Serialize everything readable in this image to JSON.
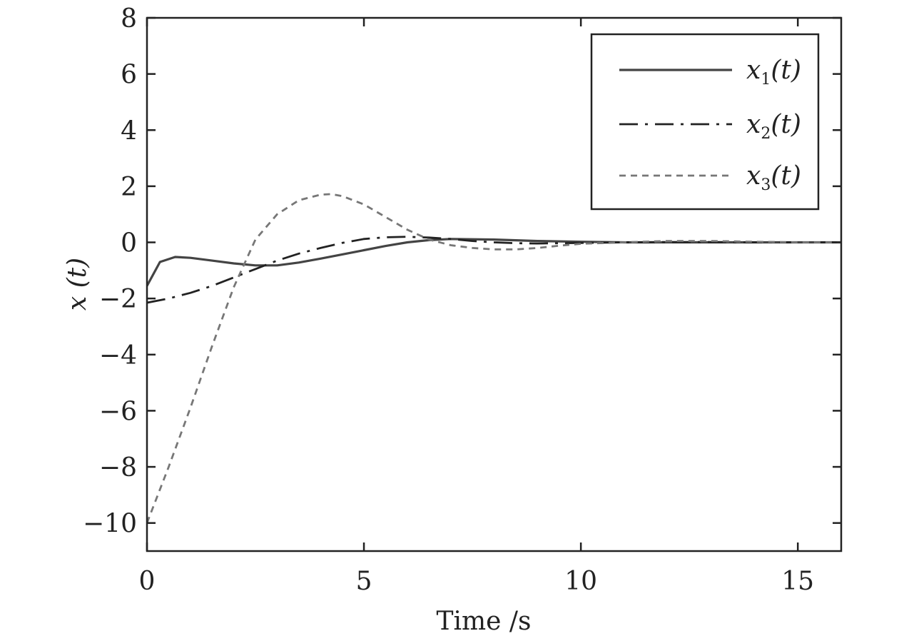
{
  "chart_data": {
    "type": "line",
    "title": "",
    "xlabel": "Time /s",
    "ylabel": "x (t)",
    "xlim": [
      0,
      16
    ],
    "ylim": [
      -11,
      8
    ],
    "xticks": [
      0,
      5,
      10,
      15
    ],
    "xtick_labels": [
      "0",
      "5",
      "10",
      "15"
    ],
    "yticks": [
      8,
      6,
      4,
      2,
      0,
      -2,
      -4,
      -6,
      -8,
      -10
    ],
    "ytick_labels": [
      "8",
      "6",
      "4",
      "2",
      "0",
      "−2",
      "−4",
      "−6",
      "−8",
      "−10"
    ],
    "grid": false,
    "legend_position": "top-right",
    "series": [
      {
        "name": "x1(t)",
        "legend_base": "x",
        "legend_sub": "1",
        "legend_tail": "(t)",
        "color": "#444444",
        "style": "solid",
        "x": [
          0,
          0.3,
          0.65,
          1.0,
          1.5,
          2.0,
          2.5,
          3.0,
          3.5,
          4.0,
          4.5,
          5.0,
          5.5,
          6.0,
          6.5,
          7.0,
          8.0,
          9.0,
          10.0,
          11.0,
          12.0,
          13.0,
          14.0,
          15.0,
          16.0
        ],
        "values": [
          -1.55,
          -0.7,
          -0.52,
          -0.55,
          -0.65,
          -0.75,
          -0.82,
          -0.82,
          -0.72,
          -0.58,
          -0.43,
          -0.28,
          -0.13,
          0.0,
          0.08,
          0.12,
          0.1,
          0.05,
          0.02,
          0.0,
          0.0,
          0.0,
          0.0,
          0.0,
          0.0
        ]
      },
      {
        "name": "x2(t)",
        "legend_base": "x",
        "legend_sub": "2",
        "legend_tail": "(t)",
        "color": "#222222",
        "style": "dash-dot",
        "x": [
          0,
          0.5,
          1.0,
          1.5,
          2.0,
          2.5,
          3.0,
          3.5,
          4.0,
          4.5,
          5.0,
          5.5,
          6.0,
          6.5,
          7.0,
          7.5,
          8.0,
          8.5,
          9.0,
          10.0,
          11.0,
          12.0,
          13.0,
          14.0,
          15.0,
          16.0
        ],
        "values": [
          -2.15,
          -2.0,
          -1.8,
          -1.55,
          -1.25,
          -0.95,
          -0.65,
          -0.4,
          -0.2,
          -0.02,
          0.12,
          0.18,
          0.2,
          0.17,
          0.12,
          0.05,
          0.0,
          -0.03,
          -0.04,
          -0.02,
          0.0,
          0.01,
          0.01,
          0.0,
          0.0,
          0.0
        ]
      },
      {
        "name": "x3(t)",
        "legend_base": "x",
        "legend_sub": "3",
        "legend_tail": "(t)",
        "color": "#777777",
        "style": "dashed",
        "x": [
          0,
          0.5,
          1.0,
          1.5,
          2.0,
          2.5,
          3.0,
          3.5,
          4.0,
          4.25,
          4.5,
          5.0,
          5.5,
          6.0,
          6.5,
          7.0,
          7.5,
          8.0,
          8.5,
          9.0,
          9.5,
          10.0,
          11.0,
          12.0,
          13.0,
          14.0,
          15.0,
          16.0
        ],
        "values": [
          -10.0,
          -8.0,
          -5.9,
          -3.7,
          -1.6,
          0.1,
          1.0,
          1.5,
          1.7,
          1.72,
          1.65,
          1.35,
          0.9,
          0.45,
          0.1,
          -0.1,
          -0.2,
          -0.25,
          -0.25,
          -0.2,
          -0.12,
          -0.05,
          0.0,
          0.05,
          0.05,
          0.02,
          0.0,
          0.0
        ]
      }
    ]
  }
}
